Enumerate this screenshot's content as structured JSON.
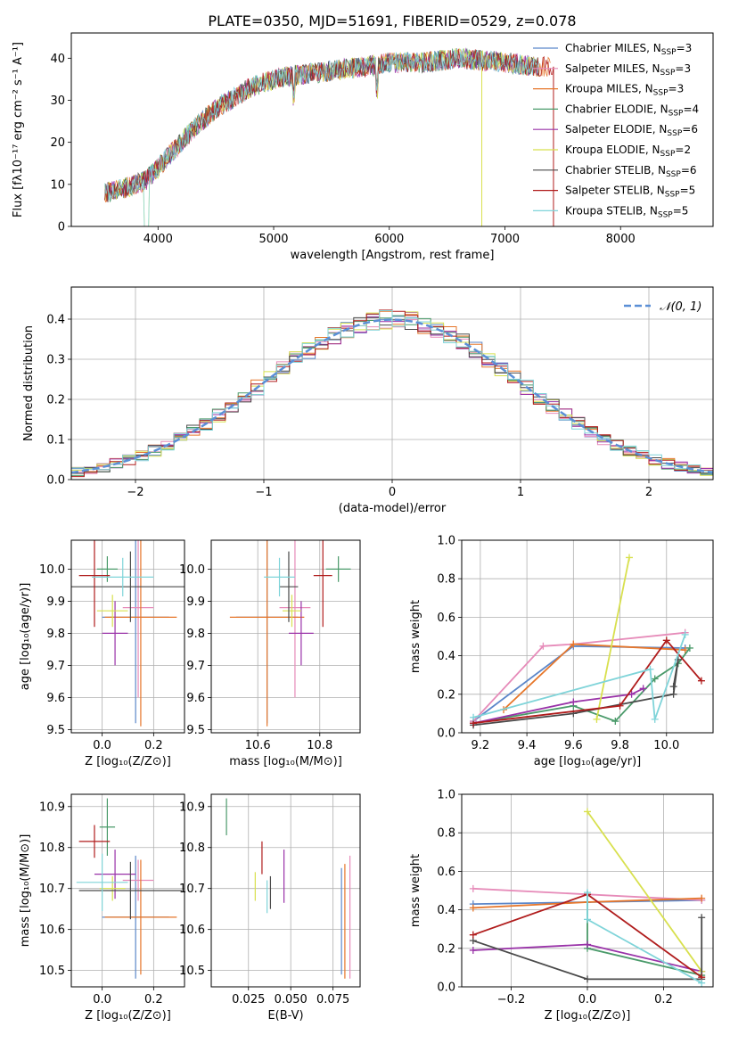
{
  "chart_data": [
    {
      "id": "spectrum",
      "type": "line",
      "title": "PLATE=0350, MJD=51691, FIBERID=0529, z=0.078",
      "xlabel": "wavelength [Angstrom, rest frame]",
      "ylabel": "Flux [fλ10⁻¹⁷ erg cm⁻² s⁻¹ A⁻¹]",
      "xlim": [
        3250,
        8800
      ],
      "ylim": [
        0,
        46
      ],
      "xticks": [
        4000,
        5000,
        6000,
        7000,
        8000
      ],
      "yticks": [
        0,
        10,
        20,
        30,
        40
      ],
      "legend_position": "top-right",
      "legend": [
        "Chabrier MILES, N_SSP=3",
        "Salpeter MILES, N_SSP=3",
        "Kroupa MILES, N_SSP=3",
        "Chabrier ELODIE, N_SSP=4",
        "Salpeter ELODIE, N_SSP=6",
        "Kroupa ELODIE, N_SSP=2",
        "Chabrier STELIB, N_SSP=6",
        "Salpeter STELIB, N_SSP=5",
        "Kroupa STELIB, N_SSP=5"
      ],
      "data_trend": {
        "x": [
          3550,
          3700,
          3900,
          4000,
          4100,
          4300,
          4500,
          4800,
          5000,
          5200,
          5500,
          5800,
          6000,
          6300,
          6600,
          7000,
          7300
        ],
        "y": [
          8,
          9,
          11,
          14,
          17,
          23,
          28,
          33,
          35,
          36,
          37,
          38,
          39,
          39,
          40,
          39,
          38
        ]
      }
    },
    {
      "id": "residuals",
      "type": "histogram",
      "xlabel": "(data-model)/error",
      "ylabel": "Normed distribution",
      "xlim": [
        -2.5,
        2.5
      ],
      "ylim": [
        0,
        0.48
      ],
      "xticks": [
        -2,
        -1,
        0,
        1,
        2
      ],
      "yticks": [
        0.0,
        0.1,
        0.2,
        0.3,
        0.4
      ],
      "grid": true,
      "legend_position": "top-right",
      "legend": [
        "𝒩(0, 1)"
      ],
      "reference_curve": {
        "name": "𝒩(0, 1)",
        "mean": 0,
        "std": 1
      }
    },
    {
      "id": "age-vs-Z",
      "type": "errorbar",
      "xlabel": "Z [log₁₀(Z/Z⊙)]",
      "ylabel": "age [log₁₀(age/yr)]",
      "xlim": [
        -0.12,
        0.32
      ],
      "ylim": [
        9.49,
        10.09
      ],
      "xticks": [
        0.0,
        0.2
      ],
      "yticks": [
        9.5,
        9.6,
        9.7,
        9.8,
        9.9,
        10.0
      ],
      "grid": true,
      "points": [
        {
          "x": 0.13,
          "xerr": 0.13,
          "y": 9.85,
          "yerr": 0.33
        },
        {
          "x": 0.14,
          "xerr": 0.06,
          "y": 9.88,
          "yerr": 0.28
        },
        {
          "x": 0.15,
          "xerr": 0.14,
          "y": 9.85,
          "yerr": 0.34
        },
        {
          "x": 0.02,
          "xerr": 0.04,
          "y": 10.0,
          "yerr": 0.04
        },
        {
          "x": 0.05,
          "xerr": 0.05,
          "y": 9.8,
          "yerr": 0.1
        },
        {
          "x": 0.04,
          "xerr": 0.06,
          "y": 9.87,
          "yerr": 0.05
        },
        {
          "x": 0.11,
          "xerr": 0.26,
          "y": 9.945,
          "yerr": 0.11
        },
        {
          "x": -0.03,
          "xerr": 0.06,
          "y": 9.98,
          "yerr": 0.16
        },
        {
          "x": 0.08,
          "xerr": 0.12,
          "y": 9.975,
          "yerr": 0.06
        }
      ]
    },
    {
      "id": "age-vs-mass",
      "type": "errorbar",
      "xlabel": "mass [log₁₀(M/M⊙)]",
      "ylabel": "",
      "xlim": [
        10.45,
        10.93
      ],
      "ylim": [
        9.49,
        10.09
      ],
      "xticks": [
        10.6,
        10.8
      ],
      "yticks": [
        9.5,
        9.6,
        9.7,
        9.8,
        9.9,
        10.0
      ],
      "grid": true,
      "points": [
        {
          "x": 10.63,
          "xerr": 0.1,
          "y": 9.85,
          "yerr": 0.33
        },
        {
          "x": 10.72,
          "xerr": 0.05,
          "y": 9.88,
          "yerr": 0.28
        },
        {
          "x": 10.63,
          "xerr": 0.12,
          "y": 9.85,
          "yerr": 0.34
        },
        {
          "x": 10.86,
          "xerr": 0.04,
          "y": 10.0,
          "yerr": 0.04
        },
        {
          "x": 10.74,
          "xerr": 0.04,
          "y": 9.8,
          "yerr": 0.1
        },
        {
          "x": 10.71,
          "xerr": 0.03,
          "y": 9.87,
          "yerr": 0.05
        },
        {
          "x": 10.7,
          "xerr": 0.03,
          "y": 9.945,
          "yerr": 0.11
        },
        {
          "x": 10.81,
          "xerr": 0.03,
          "y": 9.98,
          "yerr": 0.16
        },
        {
          "x": 10.67,
          "xerr": 0.05,
          "y": 9.975,
          "yerr": 0.06
        }
      ]
    },
    {
      "id": "weight-vs-age",
      "type": "line",
      "xlabel": "age [log₁₀(age/yr)]",
      "ylabel": "mass weight",
      "xlim": [
        9.12,
        10.2
      ],
      "ylim": [
        0,
        1.0
      ],
      "xticks": [
        9.2,
        9.4,
        9.6,
        9.8,
        10.0
      ],
      "yticks": [
        0.0,
        0.2,
        0.4,
        0.6,
        0.8,
        1.0
      ],
      "grid": true,
      "series": [
        {
          "x": [
            9.17,
            9.6,
            10.08
          ],
          "y": [
            0.06,
            0.45,
            0.44
          ]
        },
        {
          "x": [
            9.17,
            9.47,
            9.6,
            10.08
          ],
          "y": [
            0.06,
            0.45,
            0.46,
            0.52
          ]
        },
        {
          "x": [
            9.3,
            9.6,
            10.08
          ],
          "y": [
            0.12,
            0.46,
            0.43
          ]
        },
        {
          "x": [
            9.17,
            9.6,
            9.78,
            9.95,
            10.05,
            10.1
          ],
          "y": [
            0.05,
            0.14,
            0.06,
            0.28,
            0.36,
            0.44
          ]
        },
        {
          "x": [
            9.17,
            9.6,
            9.85,
            9.9
          ],
          "y": [
            0.05,
            0.16,
            0.2,
            0.23
          ]
        },
        {
          "x": [
            9.7,
            9.84
          ],
          "y": [
            0.07,
            0.91
          ]
        },
        {
          "x": [
            9.17,
            9.6,
            10.03,
            10.05,
            10.03
          ],
          "y": [
            0.04,
            0.1,
            0.2,
            0.38,
            0.24
          ]
        },
        {
          "x": [
            9.17,
            9.8,
            10.0,
            10.15
          ],
          "y": [
            0.05,
            0.14,
            0.48,
            0.27
          ]
        },
        {
          "x": [
            9.17,
            9.93,
            9.95,
            10.08
          ],
          "y": [
            0.08,
            0.33,
            0.07,
            0.51
          ]
        }
      ]
    },
    {
      "id": "mass-vs-Z",
      "type": "errorbar",
      "xlabel": "Z [log₁₀(Z/Z⊙)]",
      "ylabel": "mass [log₁₀(M/M⊙)]",
      "xlim": [
        -0.12,
        0.32
      ],
      "ylim": [
        10.46,
        10.93
      ],
      "xticks": [
        0.0,
        0.2
      ],
      "yticks": [
        10.5,
        10.6,
        10.7,
        10.8,
        10.9
      ],
      "grid": true,
      "points": [
        {
          "x": 0.13,
          "xerr": 0.13,
          "y": 10.63,
          "yerr": 0.15
        },
        {
          "x": 0.14,
          "xerr": 0.06,
          "y": 10.72,
          "yerr": 0.05
        },
        {
          "x": 0.15,
          "xerr": 0.14,
          "y": 10.63,
          "yerr": 0.14
        },
        {
          "x": 0.02,
          "xerr": 0.03,
          "y": 10.85,
          "yerr": 0.07
        },
        {
          "x": 0.05,
          "xerr": 0.08,
          "y": 10.735,
          "yerr": 0.06
        },
        {
          "x": 0.04,
          "xerr": 0.05,
          "y": 10.7,
          "yerr": 0.03
        },
        {
          "x": 0.11,
          "xerr": 0.2,
          "y": 10.695,
          "yerr": 0.07
        },
        {
          "x": -0.03,
          "xerr": 0.06,
          "y": 10.815,
          "yerr": 0.04
        },
        {
          "x": 0.0,
          "xerr": 0.1,
          "y": 10.715,
          "yerr": 0.07
        }
      ]
    },
    {
      "id": "mass-vs-ebv",
      "type": "errorbar",
      "xlabel": "E(B-V)",
      "ylabel": "",
      "xlim": [
        0.003,
        0.091
      ],
      "ylim": [
        10.46,
        10.93
      ],
      "xticks": [
        0.025,
        0.05,
        0.075
      ],
      "xticklabels": [
        "0.025",
        "0.050",
        "0.075"
      ],
      "yticks": [
        10.5,
        10.6,
        10.7,
        10.8,
        10.9
      ],
      "grid": true,
      "points": [
        {
          "x": 0.08,
          "y": 10.62,
          "yerr": 0.13
        },
        {
          "x": 0.085,
          "y": 10.63,
          "yerr": 0.15
        },
        {
          "x": 0.082,
          "y": 10.62,
          "yerr": 0.14
        },
        {
          "x": 0.012,
          "y": 10.875,
          "yerr": 0.045
        },
        {
          "x": 0.046,
          "y": 10.73,
          "yerr": 0.065
        },
        {
          "x": 0.029,
          "y": 10.705,
          "yerr": 0.035
        },
        {
          "x": 0.038,
          "y": 10.69,
          "yerr": 0.04
        },
        {
          "x": 0.033,
          "y": 10.775,
          "yerr": 0.04
        },
        {
          "x": 0.036,
          "y": 10.68,
          "yerr": 0.04
        }
      ]
    },
    {
      "id": "weight-vs-Z",
      "type": "line",
      "xlabel": "Z [log₁₀(Z/Z⊙)]",
      "ylabel": "mass weight",
      "xlim": [
        -0.33,
        0.33
      ],
      "ylim": [
        0,
        1.0
      ],
      "xticks": [
        -0.2,
        0.0,
        0.2
      ],
      "yticks": [
        0.0,
        0.2,
        0.4,
        0.6,
        0.8,
        1.0
      ],
      "grid": true,
      "series": [
        {
          "x": [
            -0.3,
            0.0,
            0.3
          ],
          "y": [
            0.43,
            0.44,
            0.45
          ]
        },
        {
          "x": [
            -0.3,
            0.3
          ],
          "y": [
            0.51,
            0.45
          ]
        },
        {
          "x": [
            -0.3,
            0.0,
            0.3
          ],
          "y": [
            0.41,
            0.44,
            0.46
          ]
        },
        {
          "x": [
            0.0,
            0.0,
            0.3
          ],
          "y": [
            0.48,
            0.2,
            0.06
          ]
        },
        {
          "x": [
            -0.3,
            0.0,
            0.3
          ],
          "y": [
            0.19,
            0.22,
            0.08
          ]
        },
        {
          "x": [
            0.0,
            0.3
          ],
          "y": [
            0.91,
            0.08
          ]
        },
        {
          "x": [
            -0.3,
            0.0,
            0.3,
            0.3
          ],
          "y": [
            0.24,
            0.04,
            0.04,
            0.36
          ]
        },
        {
          "x": [
            -0.3,
            0.0,
            0.3
          ],
          "y": [
            0.27,
            0.48,
            0.05
          ]
        },
        {
          "x": [
            0.0,
            0.0,
            0.3
          ],
          "y": [
            0.49,
            0.35,
            0.02
          ]
        }
      ]
    }
  ],
  "colors": [
    "#5b86c9",
    "#e68bb9",
    "#e6762a",
    "#4a9a6a",
    "#9932a8",
    "#d8e04e",
    "#4a4a4a",
    "#b01c1c",
    "#7fd4d9"
  ],
  "ncurve_color": "#5b8fd6"
}
